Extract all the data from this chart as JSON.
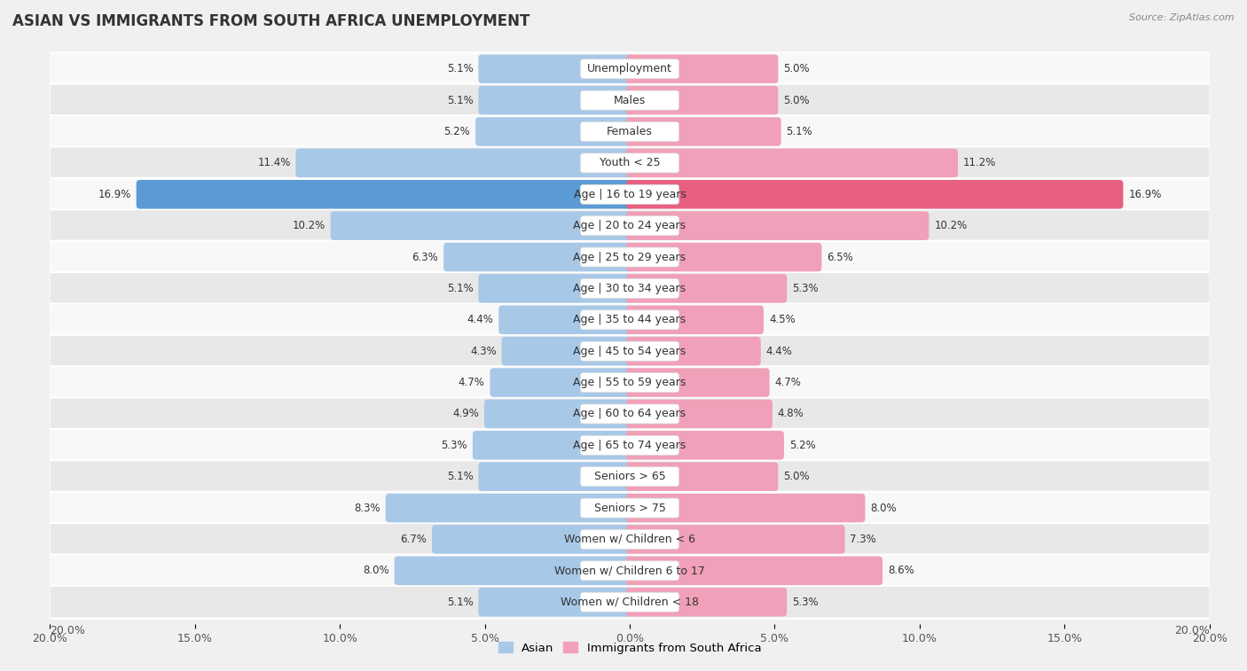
{
  "title": "ASIAN VS IMMIGRANTS FROM SOUTH AFRICA UNEMPLOYMENT",
  "source": "Source: ZipAtlas.com",
  "categories": [
    "Unemployment",
    "Males",
    "Females",
    "Youth < 25",
    "Age | 16 to 19 years",
    "Age | 20 to 24 years",
    "Age | 25 to 29 years",
    "Age | 30 to 34 years",
    "Age | 35 to 44 years",
    "Age | 45 to 54 years",
    "Age | 55 to 59 years",
    "Age | 60 to 64 years",
    "Age | 65 to 74 years",
    "Seniors > 65",
    "Seniors > 75",
    "Women w/ Children < 6",
    "Women w/ Children 6 to 17",
    "Women w/ Children < 18"
  ],
  "asian_values": [
    5.1,
    5.1,
    5.2,
    11.4,
    16.9,
    10.2,
    6.3,
    5.1,
    4.4,
    4.3,
    4.7,
    4.9,
    5.3,
    5.1,
    8.3,
    6.7,
    8.0,
    5.1
  ],
  "immigrant_values": [
    5.0,
    5.0,
    5.1,
    11.2,
    16.9,
    10.2,
    6.5,
    5.3,
    4.5,
    4.4,
    4.7,
    4.8,
    5.2,
    5.0,
    8.0,
    7.3,
    8.6,
    5.3
  ],
  "asian_color": "#a8c8e8",
  "immigrant_color": "#f0a0b8",
  "highlight_asian_color": "#5b9bd5",
  "highlight_immigrant_color": "#e86080",
  "background_color": "#f0f0f0",
  "row_color_light": "#f8f8f8",
  "row_color_dark": "#e8e8e8",
  "axis_max": 20.0,
  "bar_height": 0.68,
  "legend_asian": "Asian",
  "legend_immigrant": "Immigrants from South Africa",
  "title_fontsize": 12,
  "label_fontsize": 9,
  "value_fontsize": 8.5
}
